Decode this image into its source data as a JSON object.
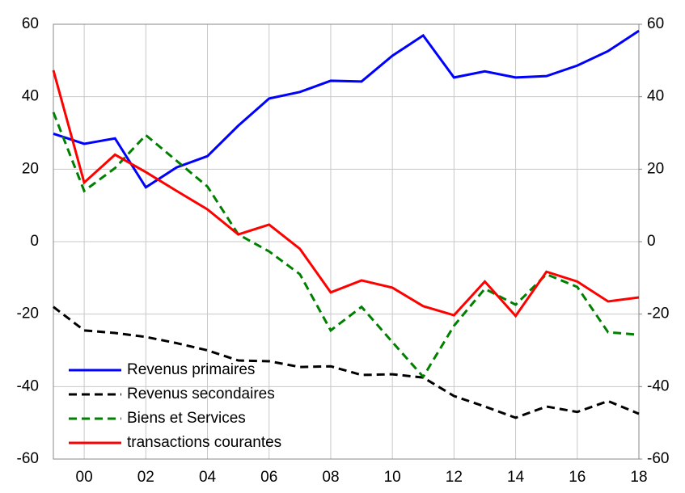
{
  "chart_data": {
    "type": "line",
    "x": [
      1999,
      2000,
      2001,
      2002,
      2003,
      2004,
      2005,
      2006,
      2007,
      2008,
      2009,
      2010,
      2011,
      2012,
      2013,
      2014,
      2015,
      2016,
      2017,
      2018
    ],
    "xlim": [
      1999,
      2018
    ],
    "xticks": [
      {
        "value": 2000,
        "label": "00"
      },
      {
        "value": 2002,
        "label": "02"
      },
      {
        "value": 2004,
        "label": "04"
      },
      {
        "value": 2006,
        "label": "06"
      },
      {
        "value": 2008,
        "label": "08"
      },
      {
        "value": 2010,
        "label": "10"
      },
      {
        "value": 2012,
        "label": "12"
      },
      {
        "value": 2014,
        "label": "14"
      },
      {
        "value": 2016,
        "label": "16"
      },
      {
        "value": 2018,
        "label": "18"
      }
    ],
    "ylim": [
      -60,
      60
    ],
    "yticks": [
      -60,
      -40,
      -20,
      0,
      20,
      40,
      60
    ],
    "y2lim": [
      -60,
      60
    ],
    "y2ticks": [
      -60,
      -40,
      -20,
      0,
      20,
      40,
      60
    ],
    "grid": true,
    "legend": "lower left",
    "series": [
      {
        "name": "Revenus primaires",
        "color": "#0000ff",
        "dashed": false,
        "values": [
          29.8,
          27,
          28.5,
          15,
          20.5,
          23.6,
          32,
          39.5,
          41.3,
          44.4,
          44.2,
          51.3,
          56.9,
          45.3,
          47,
          45.3,
          45.7,
          48.6,
          52.6,
          58.2
        ]
      },
      {
        "name": "Revenus secondaires",
        "color": "#000000",
        "dashed": true,
        "values": [
          -18,
          -24.5,
          -25.2,
          -26.3,
          -28,
          -30,
          -32.8,
          -33,
          -34.6,
          -34.4,
          -36.8,
          -36.6,
          -37.5,
          -42.6,
          -45.5,
          -48.6,
          -45.5,
          -47,
          -44,
          -47.5
        ]
      },
      {
        "name": "Biens et Services",
        "color": "#008000",
        "dashed": true,
        "values": [
          35.7,
          14,
          20.3,
          29.4,
          22.3,
          15.2,
          2,
          -2.7,
          -9,
          -24.5,
          -18,
          -27.7,
          -37.3,
          -23.2,
          -13,
          -17.4,
          -9,
          -12.5,
          -25,
          -25.7
        ]
      },
      {
        "name": "transactions courantes",
        "color": "#ff0000",
        "dashed": false,
        "values": [
          47.3,
          16.3,
          24,
          19.2,
          14,
          8.9,
          2,
          4.7,
          -2,
          -14,
          -10.7,
          -12.7,
          -17.8,
          -20.3,
          -11,
          -20.5,
          -8.3,
          -11,
          -16.5,
          -15.4
        ]
      }
    ]
  }
}
